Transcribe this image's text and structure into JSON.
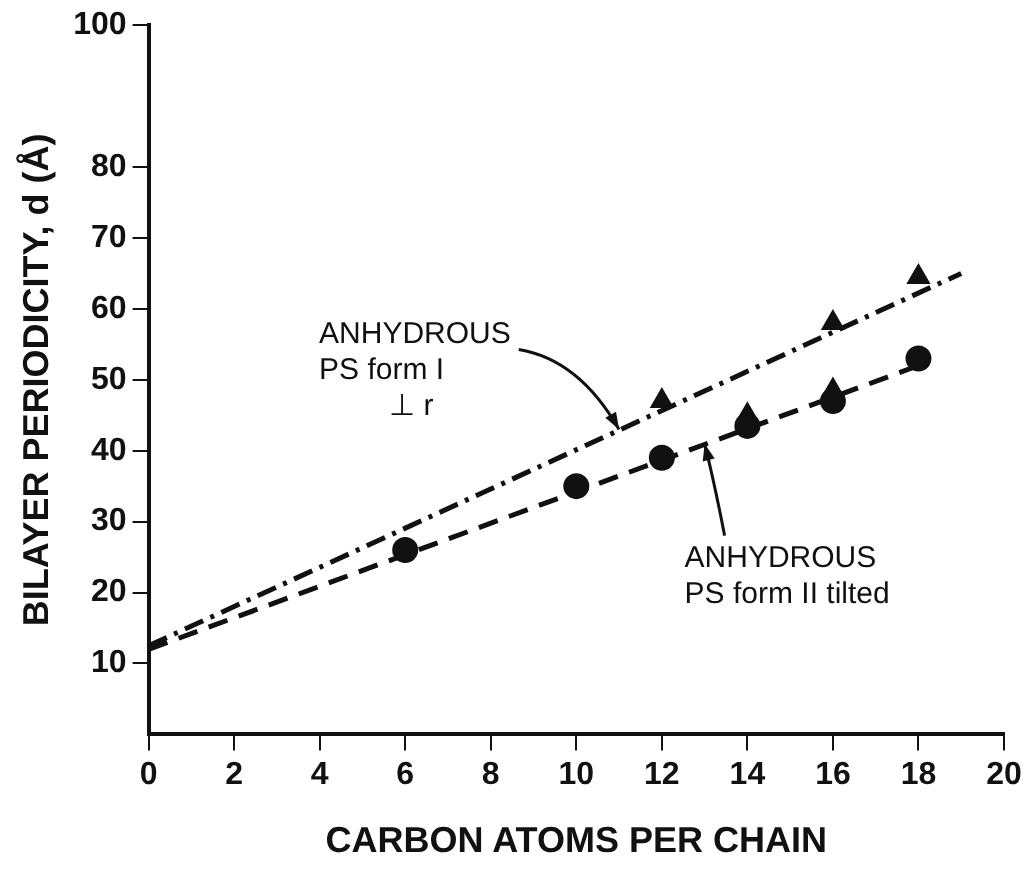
{
  "chart_data": {
    "type": "scatter",
    "xlabel": "CARBON ATOMS PER CHAIN",
    "ylabel": "BILAYER PERIODICITY, d (Å)",
    "xlim": [
      0,
      20
    ],
    "xticks": [
      0,
      2,
      4,
      6,
      8,
      10,
      12,
      14,
      16,
      18,
      20
    ],
    "ylim": [
      0,
      100
    ],
    "yticks": [
      10,
      20,
      30,
      40,
      50,
      60,
      70,
      80,
      100
    ],
    "grid": false,
    "legend": false,
    "series": [
      {
        "type": "line",
        "x": [
          0,
          19
        ],
        "values": [
          12.5,
          65
        ],
        "color": "#111111",
        "marker": "none",
        "line_style": "dashdot"
      },
      {
        "type": "line",
        "x": [
          0,
          18
        ],
        "values": [
          12,
          52
        ],
        "color": "#111111",
        "marker": "none",
        "line_style": "dashed"
      },
      {
        "type": "scatter",
        "x": [
          12,
          16,
          18
        ],
        "values": [
          47,
          58,
          64.5
        ],
        "color": "#111111",
        "marker": "triangle"
      },
      {
        "type": "scatter",
        "x": [
          6,
          10,
          12,
          14,
          16,
          18
        ],
        "values": [
          26,
          35,
          39,
          43.5,
          47,
          53
        ],
        "color": "#111111",
        "marker": "circle"
      },
      {
        "type": "scatter",
        "x": [
          14,
          16
        ],
        "values": [
          45,
          48.5
        ],
        "color": "#111111",
        "marker": "triangle"
      }
    ],
    "annotations": [
      {
        "text": "ANHYDROUS\nPS form I\n⊥ r",
        "x": 11,
        "y": 43
      },
      {
        "text": "ANHYDROUS\nPS form II tilted",
        "x": 13,
        "y": 41
      }
    ]
  }
}
